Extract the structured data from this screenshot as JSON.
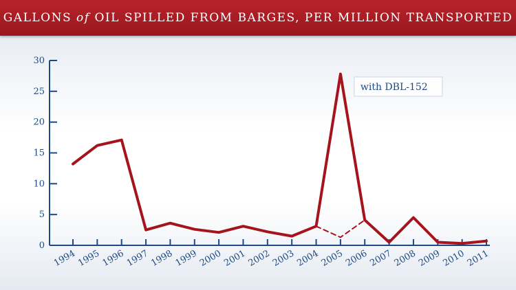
{
  "title": {
    "part1": "Gallons",
    "part2": "of",
    "part3": "Oil spilled from barges, per million transported"
  },
  "chart_data": {
    "type": "line",
    "title": "Gallons of Oil spilled from barges, per million transported",
    "xlabel": "",
    "ylabel": "",
    "categories": [
      "1994",
      "1995",
      "1996",
      "1997",
      "1998",
      "1999",
      "2000",
      "2001",
      "2002",
      "2003",
      "2004",
      "2005",
      "2006",
      "2007",
      "2008",
      "2009",
      "2010",
      "2011"
    ],
    "series": [
      {
        "name": "with DBL-152",
        "values": [
          13.2,
          16.2,
          17.1,
          2.5,
          3.6,
          2.6,
          2.1,
          3.1,
          2.2,
          1.5,
          3.1,
          27.8,
          4.1,
          0.5,
          4.5,
          0.5,
          0.3,
          0.7
        ],
        "style": "solid"
      },
      {
        "name": "",
        "values": [
          null,
          null,
          null,
          null,
          null,
          null,
          null,
          null,
          null,
          null,
          3.1,
          1.3,
          4.1,
          null,
          null,
          null,
          null,
          null
        ],
        "style": "dashed"
      }
    ],
    "annotations": [
      {
        "text": "with DBL-152",
        "category": "2005"
      }
    ],
    "yticks": [
      0,
      5,
      10,
      15,
      20,
      25,
      30
    ],
    "ylim": [
      0,
      30
    ],
    "grid": false,
    "line_color": "#a5141c",
    "axis_color": "#1d4a84"
  }
}
